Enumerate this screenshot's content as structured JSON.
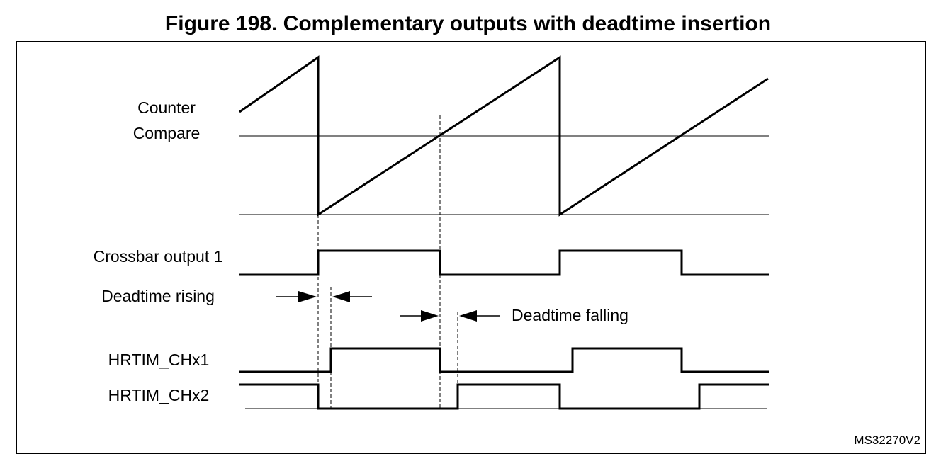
{
  "figure": {
    "title": "Figure 198. Complementary outputs with deadtime insertion",
    "reference": "MS32270V2"
  },
  "labels": {
    "counter": "Counter",
    "compare": "Compare",
    "crossbar_output_1": "Crossbar output 1",
    "deadtime_rising": "Deadtime rising",
    "deadtime_falling": "Deadtime falling",
    "hrtim_chx1": "HRTIM_CHx1",
    "hrtim_chx2": "HRTIM_CHx2"
  }
}
